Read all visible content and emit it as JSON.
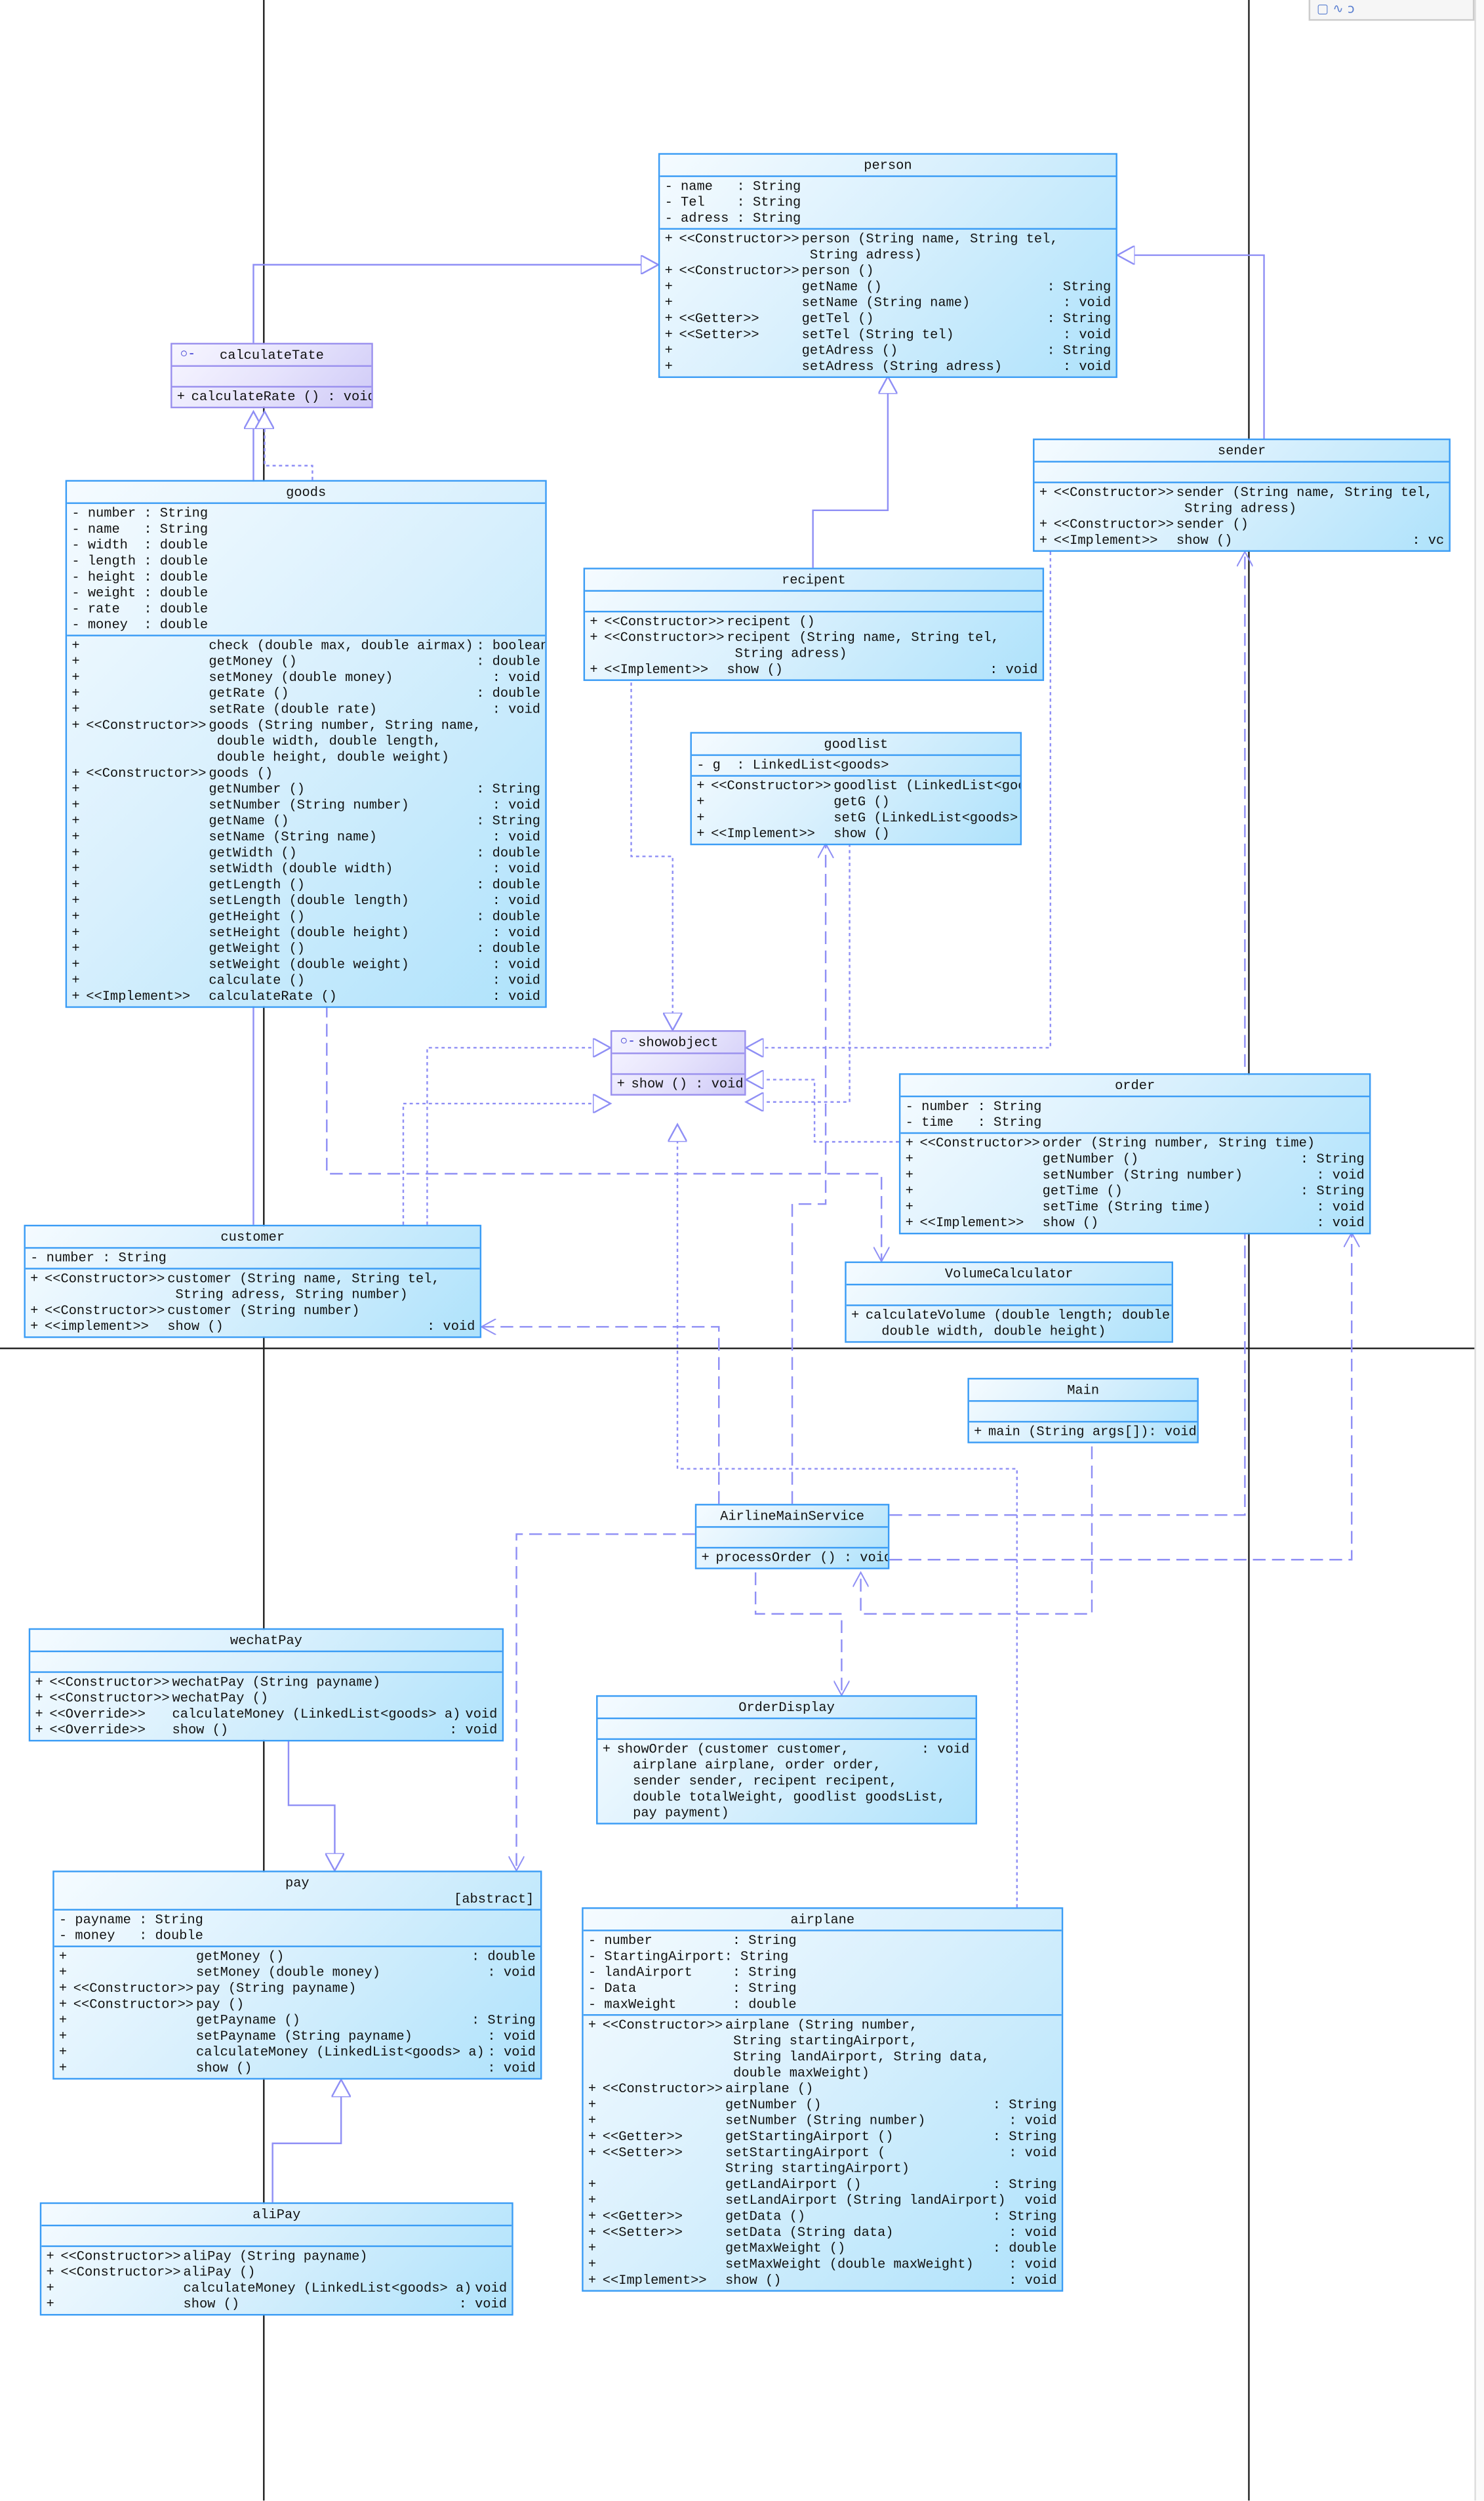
{
  "toolbar": {
    "icons": [
      "rectangle-icon",
      "line-icon",
      "lasso-icon"
    ],
    "glyphs": [
      "▢",
      "∿",
      "ↄ"
    ]
  },
  "colors": {
    "class_border": "#3a9cf5",
    "interface_border": "#9a90ee",
    "relation_line": "#8f8ff5",
    "class_fill_end": "#aee2fb"
  },
  "classes": [
    {
      "id": "person",
      "name": "person",
      "attrs": [
        "- name   : String",
        "- Tel    : String",
        "- adress : String"
      ],
      "methods": [
        {
          "v": "+",
          "st": "<<Constructor>>",
          "sig": "person (String name, String tel,\n String adress)",
          "ret": ""
        },
        {
          "v": "+",
          "st": "<<Constructor>>",
          "sig": "person ()",
          "ret": ""
        },
        {
          "v": "+",
          "st": "",
          "sig": "getName ()",
          "ret": ": String"
        },
        {
          "v": "+",
          "st": "",
          "sig": "setName (String name)",
          "ret": ": void"
        },
        {
          "v": "+",
          "st": "<<Getter>>",
          "sig": "getTel ()",
          "ret": ": String"
        },
        {
          "v": "+",
          "st": "<<Setter>>",
          "sig": "setTel (String tel)",
          "ret": ": void"
        },
        {
          "v": "+",
          "st": "",
          "sig": "getAdress ()",
          "ret": ": String"
        },
        {
          "v": "+",
          "st": "",
          "sig": "setAdress (String adress)",
          "ret": ": void"
        }
      ]
    },
    {
      "id": "calculateTate",
      "name": "calculateTate",
      "interface": true,
      "attrs": [],
      "methods": [
        {
          "v": "+",
          "st": "",
          "sig": "calculateRate () : void",
          "ret": "",
          "compact": true
        }
      ]
    },
    {
      "id": "sender",
      "name": "sender",
      "attrs": [],
      "methods": [
        {
          "v": "+",
          "st": "<<Constructor>>",
          "sig": "sender (String name, String tel,\n String adress)",
          "ret": ""
        },
        {
          "v": "+",
          "st": "<<Constructor>>",
          "sig": "sender ()",
          "ret": ""
        },
        {
          "v": "+",
          "st": "<<Implement>>",
          "sig": "show ()",
          "ret": ": vc"
        }
      ]
    },
    {
      "id": "goods",
      "name": "goods",
      "attrs": [
        "- number : String",
        "- name   : String",
        "- width  : double",
        "- length : double",
        "- height : double",
        "- weight : double",
        "- rate   : double",
        "- money  : double"
      ],
      "methods": [
        {
          "v": "+",
          "st": "",
          "sig": "check (double max, double airmax)",
          "ret": ": boolean"
        },
        {
          "v": "+",
          "st": "",
          "sig": "getMoney ()",
          "ret": ": double"
        },
        {
          "v": "+",
          "st": "",
          "sig": "setMoney (double money)",
          "ret": ": void"
        },
        {
          "v": "+",
          "st": "",
          "sig": "getRate ()",
          "ret": ": double"
        },
        {
          "v": "+",
          "st": "",
          "sig": "setRate (double rate)",
          "ret": ": void"
        },
        {
          "v": "+",
          "st": "<<Constructor>>",
          "sig": "goods (String number, String name,\n double width, double length,\n double height, double weight)",
          "ret": ""
        },
        {
          "v": "+",
          "st": "<<Constructor>>",
          "sig": "goods ()",
          "ret": ""
        },
        {
          "v": "+",
          "st": "",
          "sig": "getNumber ()",
          "ret": ": String"
        },
        {
          "v": "+",
          "st": "",
          "sig": "setNumber (String number)",
          "ret": ": void"
        },
        {
          "v": "+",
          "st": "",
          "sig": "getName ()",
          "ret": ": String"
        },
        {
          "v": "+",
          "st": "",
          "sig": "setName (String name)",
          "ret": ": void"
        },
        {
          "v": "+",
          "st": "",
          "sig": "getWidth ()",
          "ret": ": double"
        },
        {
          "v": "+",
          "st": "",
          "sig": "setWidth (double width)",
          "ret": ": void"
        },
        {
          "v": "+",
          "st": "",
          "sig": "getLength ()",
          "ret": ": double"
        },
        {
          "v": "+",
          "st": "",
          "sig": "setLength (double length)",
          "ret": ": void"
        },
        {
          "v": "+",
          "st": "",
          "sig": "getHeight ()",
          "ret": ": double"
        },
        {
          "v": "+",
          "st": "",
          "sig": "setHeight (double height)",
          "ret": ": void"
        },
        {
          "v": "+",
          "st": "",
          "sig": "getWeight ()",
          "ret": ": double"
        },
        {
          "v": "+",
          "st": "",
          "sig": "setWeight (double weight)",
          "ret": ": void"
        },
        {
          "v": "+",
          "st": "",
          "sig": "calculate ()",
          "ret": ": void"
        },
        {
          "v": "+",
          "st": "<<Implement>>",
          "sig": "calculateRate ()",
          "ret": ": void"
        }
      ]
    },
    {
      "id": "recipent",
      "name": "recipent",
      "attrs": [],
      "methods": [
        {
          "v": "+",
          "st": "<<Constructor>>",
          "sig": "recipent ()",
          "ret": ""
        },
        {
          "v": "+",
          "st": "<<Constructor>>",
          "sig": "recipent (String name, String tel,\n String adress)",
          "ret": ""
        },
        {
          "v": "+",
          "st": "<<Implement>>",
          "sig": "show ()",
          "ret": ": void"
        }
      ]
    },
    {
      "id": "goodlist",
      "name": "goodlist",
      "attrs": [
        "- g  : LinkedList<goods>"
      ],
      "methods": [
        {
          "v": "+",
          "st": "<<Constructor>>",
          "sig": "goodlist (LinkedList<goo",
          "ret": ""
        },
        {
          "v": "+",
          "st": "",
          "sig": "getG ()",
          "ret": ""
        },
        {
          "v": "+",
          "st": "",
          "sig": "setG (LinkedList<goods>",
          "ret": ""
        },
        {
          "v": "+",
          "st": "<<Implement>>",
          "sig": "show ()",
          "ret": ""
        }
      ]
    },
    {
      "id": "showobject",
      "name": "showobject",
      "interface": true,
      "attrs": [],
      "methods": [
        {
          "v": "+",
          "st": "",
          "sig": "show () : void",
          "ret": "",
          "compact": true
        }
      ]
    },
    {
      "id": "order",
      "name": "order",
      "attrs": [
        "- number : String",
        "- time   : String"
      ],
      "methods": [
        {
          "v": "+",
          "st": "<<Constructor>>",
          "sig": "order (String number, String time)",
          "ret": ""
        },
        {
          "v": "+",
          "st": "",
          "sig": "getNumber ()",
          "ret": ": String"
        },
        {
          "v": "+",
          "st": "",
          "sig": "setNumber (String number)",
          "ret": ": void"
        },
        {
          "v": "+",
          "st": "",
          "sig": "getTime ()",
          "ret": ": String"
        },
        {
          "v": "+",
          "st": "",
          "sig": "setTime (String time)",
          "ret": ": void"
        },
        {
          "v": "+",
          "st": "<<Implement>>",
          "sig": "show ()",
          "ret": ": void"
        }
      ]
    },
    {
      "id": "customer",
      "name": "customer",
      "attrs": [
        "- number : String"
      ],
      "methods": [
        {
          "v": "+",
          "st": "<<Constructor>>",
          "sig": "customer (String name, String tel,\n String adress, String number)",
          "ret": ""
        },
        {
          "v": "+",
          "st": "<<Constructor>>",
          "sig": "customer (String number)",
          "ret": ""
        },
        {
          "v": "+",
          "st": "<<implement>>",
          "sig": "show ()",
          "ret": ": void"
        }
      ]
    },
    {
      "id": "VolumeCalculator",
      "name": "VolumeCalculator",
      "attrs": [],
      "methods": [
        {
          "v": "+",
          "st": "",
          "sig": "calculateVolume (double length; double\n  double width, double height)",
          "ret": "",
          "compact": true
        }
      ]
    },
    {
      "id": "Main",
      "name": "Main",
      "attrs": [],
      "methods": [
        {
          "v": "+",
          "st": "",
          "sig": "main (String args[]): void",
          "ret": "",
          "compact": true
        }
      ]
    },
    {
      "id": "AirlineMainService",
      "name": "AirlineMainService",
      "attrs": [],
      "methods": [
        {
          "v": "+",
          "st": "",
          "sig": "processOrder () : void",
          "ret": "",
          "compact": true
        }
      ]
    },
    {
      "id": "wechatPay",
      "name": "wechatPay",
      "attrs": [],
      "methods": [
        {
          "v": "+",
          "st": "<<Constructor>>",
          "sig": "wechatPay (String payname)",
          "ret": ""
        },
        {
          "v": "+",
          "st": "<<Constructor>>",
          "sig": "wechatPay ()",
          "ret": ""
        },
        {
          "v": "+",
          "st": "<<Override>>",
          "sig": "calculateMoney (LinkedList<goods> a)",
          "ret": "void"
        },
        {
          "v": "+",
          "st": "<<Override>>",
          "sig": "show ()",
          "ret": ": void"
        }
      ]
    },
    {
      "id": "OrderDisplay",
      "name": "OrderDisplay",
      "attrs": [],
      "methods": [
        {
          "v": "+",
          "st": "",
          "sig": "showOrder (customer customer,         : void\n  airplane airplane, order order,\n  sender sender, recipent recipent,\n  double totalWeight, goodlist goodsList,\n  pay payment)",
          "ret": "",
          "compact": true
        }
      ]
    },
    {
      "id": "pay",
      "name": "pay",
      "abstract": "[abstract]",
      "attrs": [
        "- payname : String",
        "- money   : double"
      ],
      "methods": [
        {
          "v": "+",
          "st": "",
          "sig": "getMoney ()",
          "ret": ": double"
        },
        {
          "v": "+",
          "st": "",
          "sig": "setMoney (double money)",
          "ret": ": void"
        },
        {
          "v": "+",
          "st": "<<Constructor>>",
          "sig": "pay (String payname)",
          "ret": ""
        },
        {
          "v": "+",
          "st": "<<Constructor>>",
          "sig": "pay ()",
          "ret": ""
        },
        {
          "v": "+",
          "st": "",
          "sig": "getPayname ()",
          "ret": ": String"
        },
        {
          "v": "+",
          "st": "",
          "sig": "setPayname (String payname)",
          "ret": ": void"
        },
        {
          "v": "+",
          "st": "",
          "sig": "calculateMoney (LinkedList<goods> a)",
          "ret": ": void"
        },
        {
          "v": "+",
          "st": "",
          "sig": "show ()",
          "ret": ": void"
        }
      ]
    },
    {
      "id": "airplane",
      "name": "airplane",
      "attrs": [
        "- number          : String",
        "- StartingAirport: String",
        "- landAirport     : String",
        "- Data            : String",
        "- maxWeight       : double"
      ],
      "methods": [
        {
          "v": "+",
          "st": "<<Constructor>>",
          "sig": "airplane (String number,\n String startingAirport,\n String landAirport, String data,\n double maxWeight)",
          "ret": ""
        },
        {
          "v": "+",
          "st": "<<Constructor>>",
          "sig": "airplane ()",
          "ret": ""
        },
        {
          "v": "+",
          "st": "",
          "sig": "getNumber ()",
          "ret": ": String"
        },
        {
          "v": "+",
          "st": "",
          "sig": "setNumber (String number)",
          "ret": ": void"
        },
        {
          "v": "+",
          "st": "<<Getter>>",
          "sig": "getStartingAirport ()",
          "ret": ": String"
        },
        {
          "v": "+",
          "st": "<<Setter>>",
          "sig": "setStartingAirport (\nString startingAirport)",
          "ret": ": void"
        },
        {
          "v": "+",
          "st": "",
          "sig": "getLandAirport ()",
          "ret": ": String"
        },
        {
          "v": "+",
          "st": "",
          "sig": "setLandAirport (String landAirport)",
          "ret": "void"
        },
        {
          "v": "+",
          "st": "<<Getter>>",
          "sig": "getData ()",
          "ret": ": String"
        },
        {
          "v": "+",
          "st": "<<Setter>>",
          "sig": "setData (String data)",
          "ret": ": void"
        },
        {
          "v": "+",
          "st": "",
          "sig": "getMaxWeight ()",
          "ret": ": double"
        },
        {
          "v": "+",
          "st": "",
          "sig": "setMaxWeight (double maxWeight)",
          "ret": ": void"
        },
        {
          "v": "+",
          "st": "<<Implement>>",
          "sig": "show ()",
          "ret": ": void"
        }
      ]
    },
    {
      "id": "aliPay",
      "name": "aliPay",
      "attrs": [],
      "methods": [
        {
          "v": "+",
          "st": "<<Constructor>>",
          "sig": "aliPay (String payname)",
          "ret": ""
        },
        {
          "v": "+",
          "st": "<<Constructor>>",
          "sig": "aliPay ()",
          "ret": ""
        },
        {
          "v": "+",
          "st": "",
          "sig": "calculateMoney (LinkedList<goods> a)",
          "ret": "void"
        },
        {
          "v": "+",
          "st": "",
          "sig": "show ()",
          "ret": ": void"
        }
      ]
    }
  ]
}
